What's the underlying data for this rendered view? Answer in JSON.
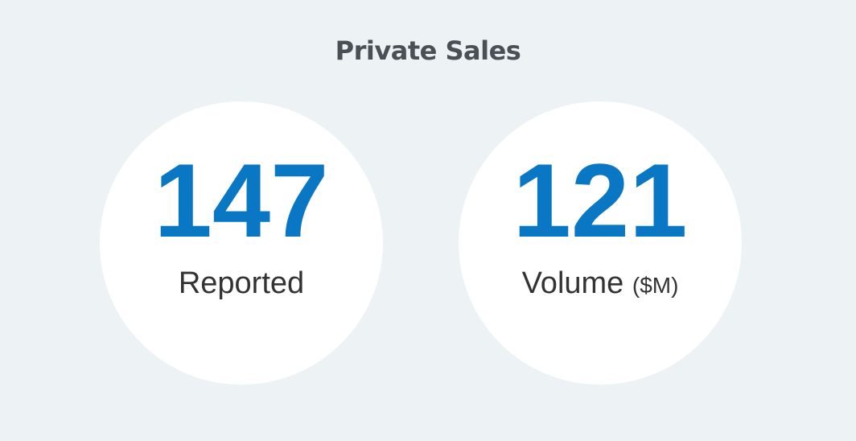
{
  "header": {
    "title": "Private Sales"
  },
  "stats": [
    {
      "value": 147,
      "label": "Reported"
    },
    {
      "value": 121,
      "label": "Volume",
      "unit": "($M)"
    }
  ]
}
